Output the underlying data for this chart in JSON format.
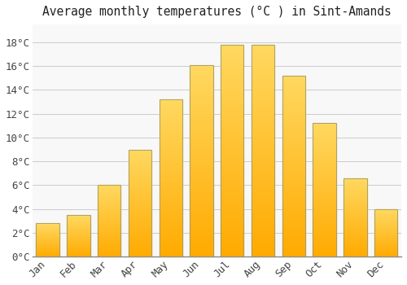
{
  "title": "Average monthly temperatures (°C ) in Sint-Amands",
  "months": [
    "Jan",
    "Feb",
    "Mar",
    "Apr",
    "May",
    "Jun",
    "Jul",
    "Aug",
    "Sep",
    "Oct",
    "Nov",
    "Dec"
  ],
  "values": [
    2.8,
    3.5,
    6.0,
    9.0,
    13.2,
    16.1,
    17.8,
    17.8,
    15.2,
    11.2,
    6.6,
    4.0
  ],
  "bar_color_main": "#FFAA00",
  "bar_color_top": "#FFD050",
  "bar_edge_color": "#999977",
  "background_color": "#FFFFFF",
  "plot_bg_color": "#F8F8F8",
  "grid_color": "#CCCCCC",
  "ylim": [
    0,
    19.5
  ],
  "yticks": [
    0,
    2,
    4,
    6,
    8,
    10,
    12,
    14,
    16,
    18
  ],
  "title_fontsize": 10.5,
  "tick_fontsize": 9,
  "bar_width": 0.75
}
